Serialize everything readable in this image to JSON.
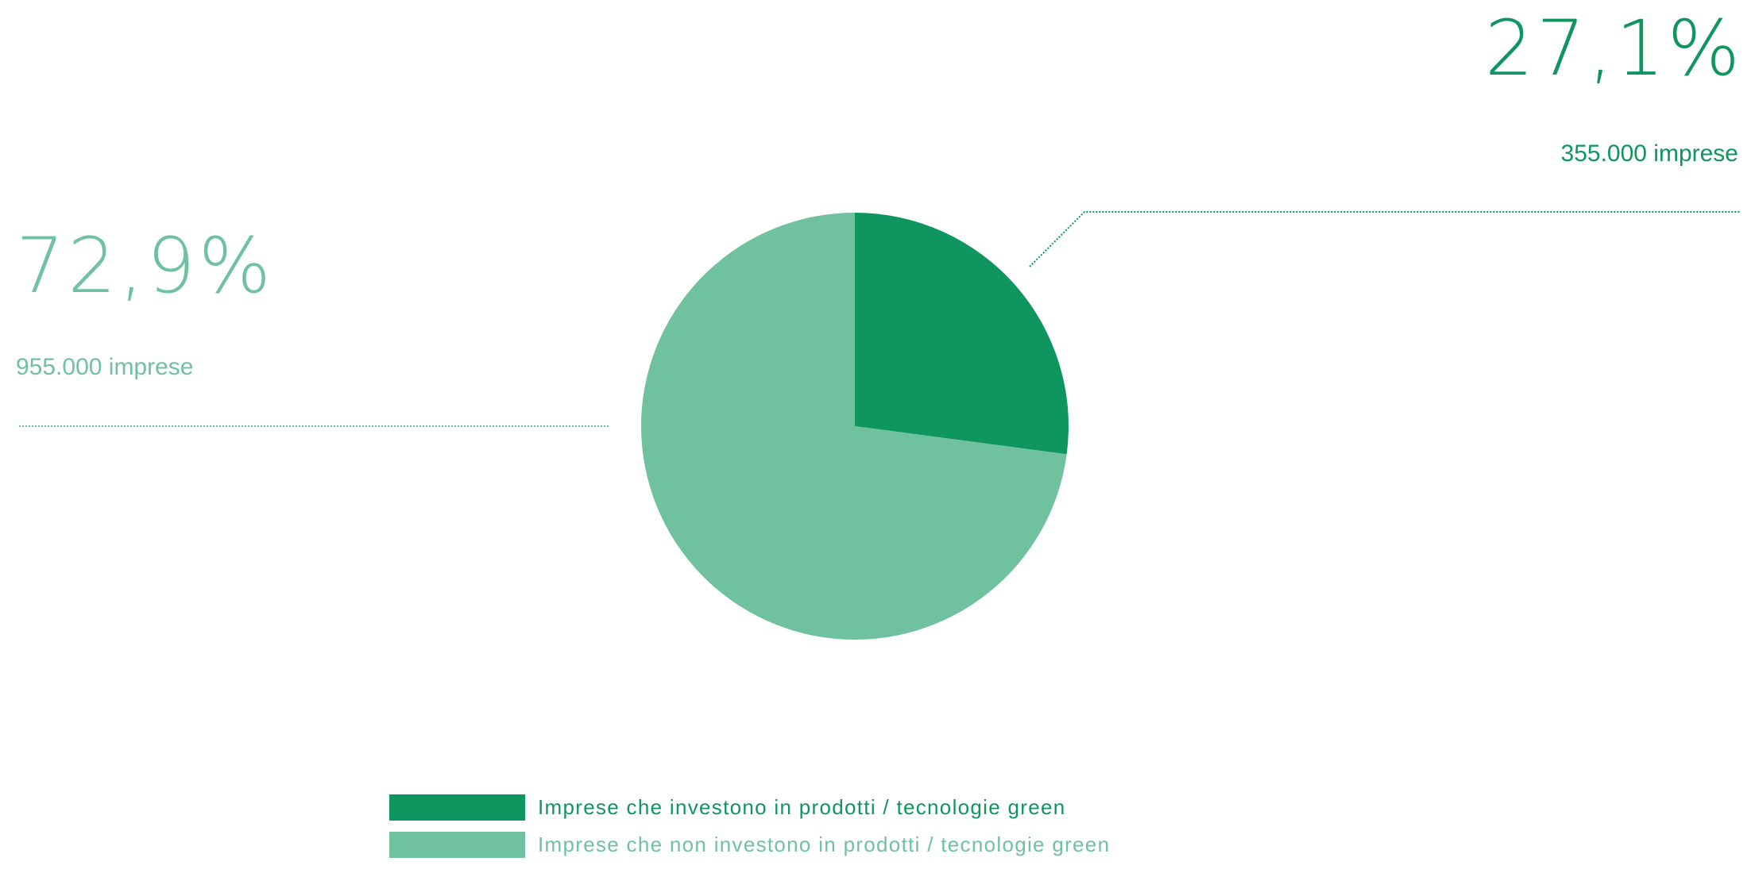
{
  "colors": {
    "dark": "#0f955f",
    "light": "#70c19f"
  },
  "chart_data": {
    "type": "pie",
    "slices": [
      {
        "label": "Imprese che investono in prodotti / tecnologie green",
        "value": 27.1,
        "percent_label": "27,1%",
        "count_label": "355.000 imprese",
        "color": "#0f955f"
      },
      {
        "label": "Imprese che non investono in prodotti / tecnologie green",
        "value": 72.9,
        "percent_label": "72,9%",
        "count_label": "955.000 imprese",
        "color": "#70c19f"
      }
    ],
    "legend_position": "bottom"
  }
}
